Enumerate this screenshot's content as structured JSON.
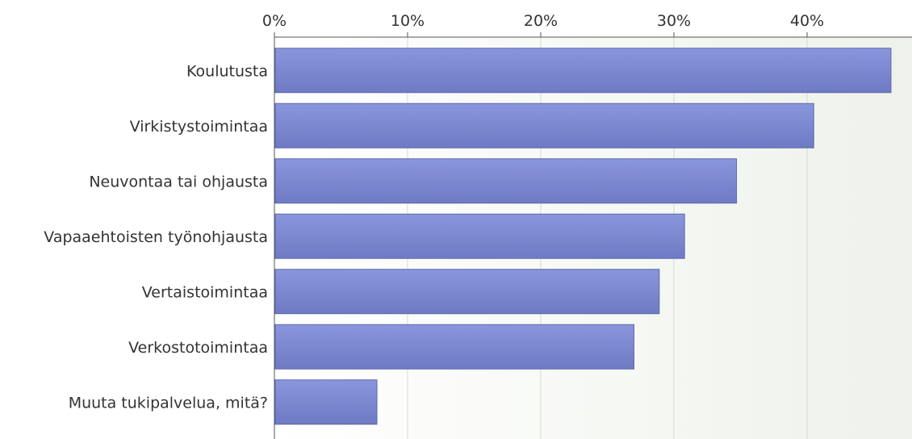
{
  "colors": {
    "bar_top": "#8a96dc",
    "bar_bottom": "#6e7bc4",
    "bar_stroke": "#5d68ad",
    "plot_bg_left": "#ffffff",
    "plot_bg_right": "#eef2ea",
    "grid": "#d6d9d2",
    "axis": "#555555"
  },
  "chart_data": {
    "type": "bar",
    "orientation": "horizontal",
    "categories": [
      "Koulutusta",
      "Virkistystoimintaa",
      "Neuvontaa tai ohjausta",
      "Vapaaehtoisten työnohjausta",
      "Vertaistoimintaa",
      "Verkostotoimintaa",
      "Muuta tukipalvelua, mitä?"
    ],
    "values": [
      46.3,
      40.5,
      34.7,
      30.8,
      28.9,
      27.0,
      7.7
    ],
    "unit": "%",
    "xlim": [
      0,
      48
    ],
    "xticks": [
      0,
      10,
      20,
      30,
      40
    ],
    "xtick_labels": [
      "0%",
      "10%",
      "20%",
      "30%",
      "40%"
    ],
    "axis_position": "top",
    "grid": true,
    "title": "",
    "xlabel": "",
    "ylabel": ""
  }
}
